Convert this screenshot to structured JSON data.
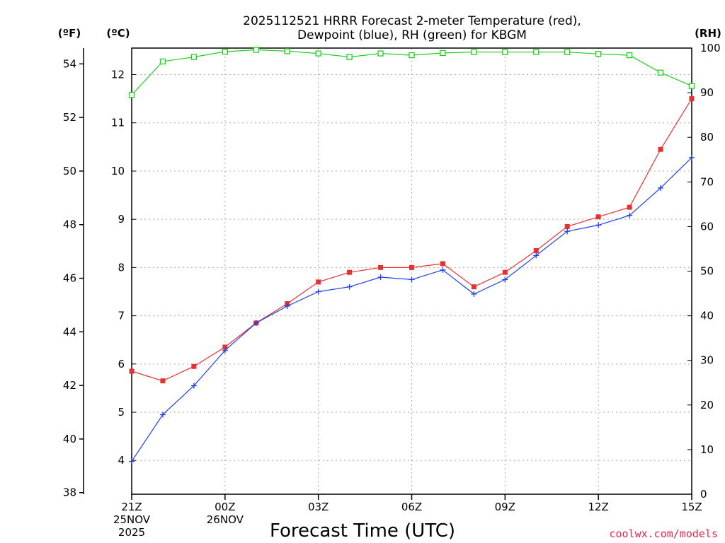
{
  "chart_data": {
    "type": "line",
    "title_line1": "2025112521 HRRR Forecast 2-meter Temperature (red),",
    "title_line2": "Dewpoint (blue), RH (green) for KBGM",
    "xlabel": "Forecast Time (UTC)",
    "credit": "coolwx.com/models",
    "units": {
      "fahrenheit": "(ºF)",
      "celsius": "(ºC)",
      "rh": "(RH)"
    },
    "celsius_range": [
      3.3,
      12.55
    ],
    "rh_range": [
      0,
      100
    ],
    "fahrenheit_ticks": [
      "38",
      "40",
      "42",
      "44",
      "46",
      "48",
      "50",
      "52",
      "54"
    ],
    "celsius_ticks": [
      "4",
      "5",
      "6",
      "7",
      "8",
      "9",
      "10",
      "11",
      "12"
    ],
    "rh_ticks": [
      "0",
      "10",
      "20",
      "30",
      "40",
      "50",
      "60",
      "70",
      "80",
      "90",
      "100"
    ],
    "x_ticks": [
      {
        "hour": 0,
        "label": "21Z",
        "sub1": "25NOV",
        "sub2": "2025"
      },
      {
        "hour": 3,
        "label": "00Z",
        "sub1": "26NOV",
        "sub2": ""
      },
      {
        "hour": 6,
        "label": "03Z",
        "sub1": "",
        "sub2": ""
      },
      {
        "hour": 9,
        "label": "06Z",
        "sub1": "",
        "sub2": ""
      },
      {
        "hour": 12,
        "label": "09Z",
        "sub1": "",
        "sub2": ""
      },
      {
        "hour": 15,
        "label": "12Z",
        "sub1": "",
        "sub2": ""
      },
      {
        "hour": 18,
        "label": "15Z",
        "sub1": "",
        "sub2": ""
      }
    ],
    "hours": [
      0,
      1,
      2,
      3,
      4,
      5,
      6,
      7,
      8,
      9,
      10,
      11,
      12,
      13,
      14,
      15,
      16,
      17,
      18
    ],
    "series": [
      {
        "name": "Temperature",
        "color": "#e83030",
        "marker": "square-filled",
        "axis": "celsius",
        "values": [
          5.85,
          5.65,
          5.95,
          6.35,
          6.85,
          7.25,
          7.7,
          7.9,
          8.0,
          8.0,
          8.08,
          7.6,
          7.9,
          8.35,
          8.85,
          9.05,
          9.25,
          10.45,
          11.5
        ]
      },
      {
        "name": "Dewpoint",
        "color": "#2040e8",
        "marker": "plus",
        "axis": "celsius",
        "values": [
          3.98,
          4.95,
          5.55,
          6.28,
          6.85,
          7.2,
          7.5,
          7.6,
          7.8,
          7.75,
          7.95,
          7.45,
          7.75,
          8.25,
          8.75,
          8.88,
          9.08,
          9.65,
          10.28
        ]
      },
      {
        "name": "RH",
        "color": "#20d020",
        "marker": "square-open",
        "axis": "rh",
        "values": [
          89.5,
          97.0,
          98.0,
          99.2,
          99.6,
          99.3,
          98.8,
          98.0,
          98.8,
          98.4,
          98.9,
          99.1,
          99.1,
          99.1,
          99.1,
          98.7,
          98.4,
          94.5,
          91.5
        ]
      }
    ]
  }
}
